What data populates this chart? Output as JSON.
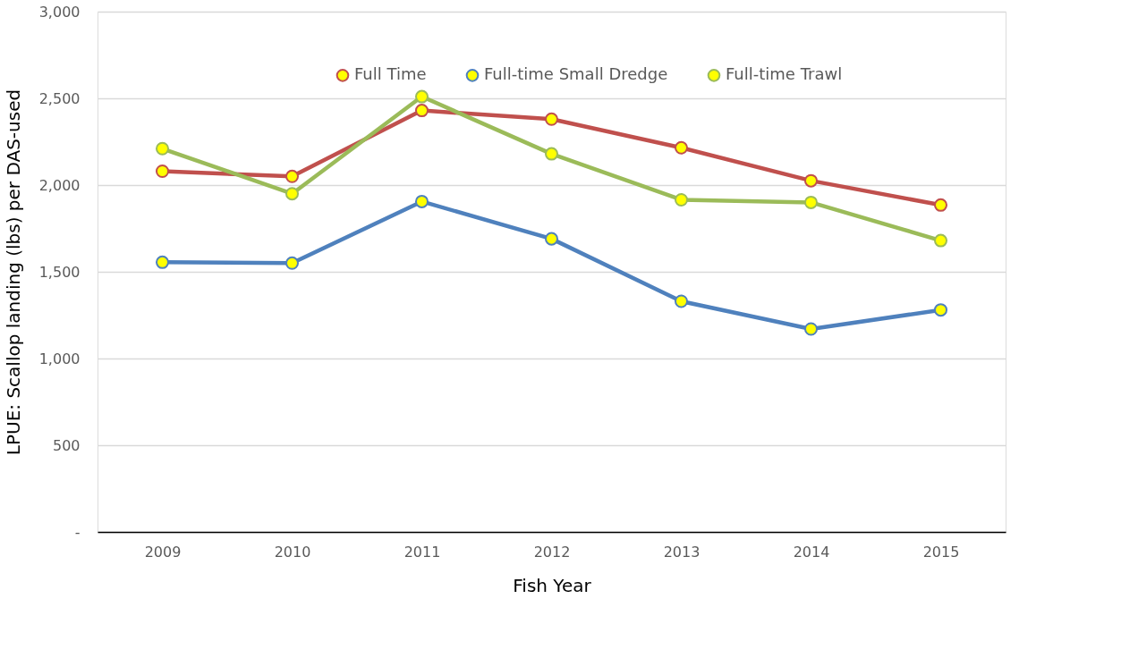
{
  "chart_data": {
    "type": "line",
    "xlabel": "Fish Year",
    "ylabel": "LPUE: Scallop landing (lbs) per DAS-used",
    "categories": [
      "2009",
      "2010",
      "2011",
      "2012",
      "2013",
      "2014",
      "2015"
    ],
    "series": [
      {
        "name": "Full Time",
        "color": "#c0504d",
        "values": [
          2080,
          2050,
          2430,
          2380,
          2215,
          2025,
          1885
        ]
      },
      {
        "name": "Full-time Small Dredge",
        "color": "#4f81bd",
        "values": [
          1555,
          1550,
          1905,
          1690,
          1330,
          1170,
          1280
        ]
      },
      {
        "name": "Full-time Trawl",
        "color": "#9bbb59",
        "values": [
          2210,
          1950,
          2510,
          2180,
          1915,
          1900,
          1680
        ]
      }
    ],
    "ylim": [
      0,
      3000
    ],
    "yticks": [
      {
        "value": 0,
        "label": "-"
      },
      {
        "value": 500,
        "label": "500"
      },
      {
        "value": 1000,
        "label": "1,000"
      },
      {
        "value": 1500,
        "label": "1,500"
      },
      {
        "value": 2000,
        "label": "2,000"
      },
      {
        "value": 2500,
        "label": "2,500"
      },
      {
        "value": 3000,
        "label": "3,000"
      }
    ],
    "grid": "y",
    "legend": "top",
    "marker": "circle",
    "line_style": "solid"
  }
}
